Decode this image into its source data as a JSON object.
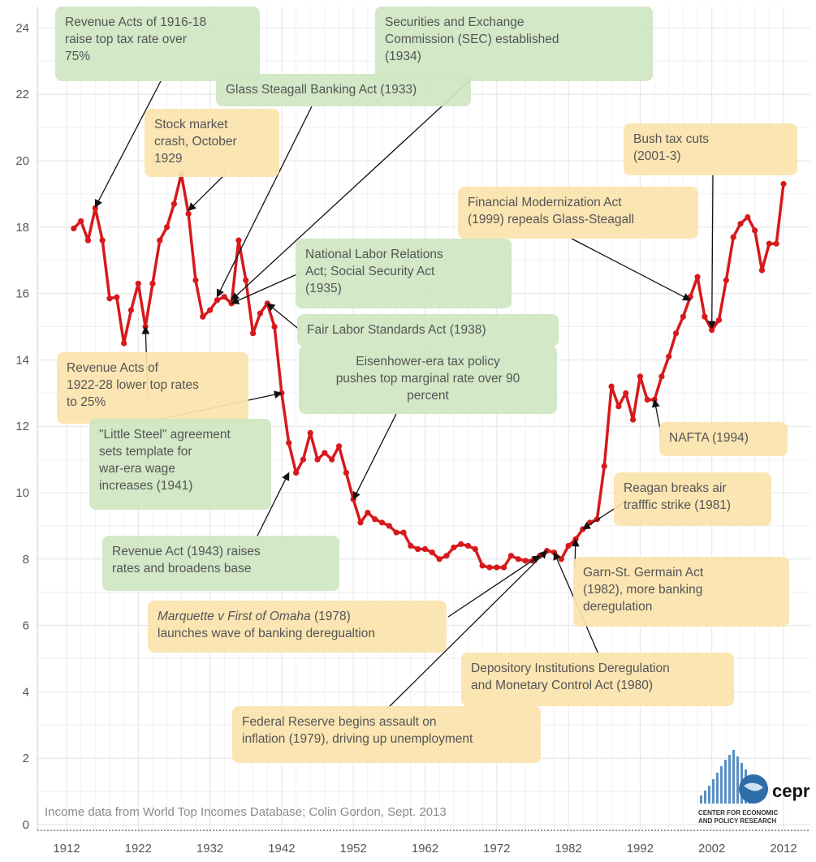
{
  "chart_data": {
    "type": "line",
    "title": "",
    "xlabel": "",
    "ylabel": "",
    "ylim": [
      0,
      25
    ],
    "xlim": [
      1910,
      2013
    ],
    "grid": true,
    "y_ticks": [
      0,
      2,
      4,
      6,
      8,
      10,
      12,
      14,
      16,
      18,
      20,
      22,
      24
    ],
    "x_ticks": [
      1912,
      1922,
      1932,
      1942,
      1952,
      1962,
      1972,
      1982,
      1992,
      2002,
      2012
    ],
    "series": [
      {
        "color": "#d7191c",
        "points": [
          [
            1913,
            17.96
          ],
          [
            1914,
            18.18
          ],
          [
            1915,
            17.6
          ],
          [
            1916,
            18.57
          ],
          [
            1917,
            17.6
          ],
          [
            1918,
            15.85
          ],
          [
            1919,
            15.89
          ],
          [
            1920,
            14.5
          ],
          [
            1921,
            15.5
          ],
          [
            1922,
            16.3
          ],
          [
            1923,
            15.0
          ],
          [
            1924,
            16.3
          ],
          [
            1925,
            17.6
          ],
          [
            1926,
            18.0
          ],
          [
            1927,
            18.7
          ],
          [
            1928,
            19.6
          ],
          [
            1929,
            18.4
          ],
          [
            1930,
            16.4
          ],
          [
            1931,
            15.3
          ],
          [
            1932,
            15.5
          ],
          [
            1933,
            15.8
          ],
          [
            1934,
            15.9
          ],
          [
            1935,
            15.7
          ],
          [
            1936,
            17.6
          ],
          [
            1937,
            16.4
          ],
          [
            1938,
            14.8
          ],
          [
            1939,
            15.4
          ],
          [
            1940,
            15.7
          ],
          [
            1941,
            15.0
          ],
          [
            1942,
            13.0
          ],
          [
            1943,
            11.5
          ],
          [
            1944,
            10.6
          ],
          [
            1945,
            11.0
          ],
          [
            1946,
            11.8
          ],
          [
            1947,
            11.0
          ],
          [
            1948,
            11.2
          ],
          [
            1949,
            11.0
          ],
          [
            1950,
            11.4
          ],
          [
            1951,
            10.6
          ],
          [
            1952,
            9.8
          ],
          [
            1953,
            9.1
          ],
          [
            1954,
            9.4
          ],
          [
            1955,
            9.2
          ],
          [
            1956,
            9.1
          ],
          [
            1957,
            9.0
          ],
          [
            1958,
            8.8
          ],
          [
            1959,
            8.8
          ],
          [
            1960,
            8.4
          ],
          [
            1961,
            8.3
          ],
          [
            1962,
            8.3
          ],
          [
            1963,
            8.2
          ],
          [
            1964,
            8.0
          ],
          [
            1965,
            8.1
          ],
          [
            1966,
            8.35
          ],
          [
            1967,
            8.45
          ],
          [
            1968,
            8.4
          ],
          [
            1969,
            8.3
          ],
          [
            1970,
            7.8
          ],
          [
            1971,
            7.75
          ],
          [
            1972,
            7.75
          ],
          [
            1973,
            7.75
          ],
          [
            1974,
            8.1
          ],
          [
            1975,
            8.0
          ],
          [
            1976,
            7.95
          ],
          [
            1977,
            7.95
          ],
          [
            1978,
            8.1
          ],
          [
            1979,
            8.25
          ],
          [
            1980,
            8.2
          ],
          [
            1981,
            8.0
          ],
          [
            1982,
            8.4
          ],
          [
            1983,
            8.6
          ],
          [
            1984,
            8.9
          ],
          [
            1985,
            9.1
          ],
          [
            1986,
            9.2
          ],
          [
            1987,
            10.8
          ],
          [
            1988,
            13.2
          ],
          [
            1989,
            12.6
          ],
          [
            1990,
            13.0
          ],
          [
            1991,
            12.2
          ],
          [
            1992,
            13.5
          ],
          [
            1993,
            12.8
          ],
          [
            1994,
            12.8
          ],
          [
            1995,
            13.5
          ],
          [
            1996,
            14.1
          ],
          [
            1997,
            14.8
          ],
          [
            1998,
            15.3
          ],
          [
            1999,
            15.9
          ],
          [
            2000,
            16.5
          ],
          [
            2001,
            15.3
          ],
          [
            2002,
            14.9
          ],
          [
            2003,
            15.2
          ],
          [
            2004,
            16.4
          ],
          [
            2005,
            17.7
          ],
          [
            2006,
            18.1
          ],
          [
            2007,
            18.3
          ],
          [
            2008,
            17.9
          ],
          [
            2009,
            16.7
          ],
          [
            2010,
            17.5
          ],
          [
            2011,
            17.5
          ],
          [
            2012,
            19.3
          ]
        ]
      }
    ],
    "annotations": [
      {
        "text": [
          "Revenue Acts of 1916-18",
          "raise top tax rate over",
          "75%"
        ],
        "color": "green",
        "target": [
          1916,
          18.6
        ]
      },
      {
        "text": [
          "Securities and Exchange",
          "Commission (SEC) established",
          "(1934)"
        ],
        "color": "green",
        "target": [
          1935,
          15.8
        ]
      },
      {
        "text": [
          "Glass Steagall Banking Act (1933)"
        ],
        "color": "green",
        "target": [
          1933,
          15.9
        ]
      },
      {
        "text": [
          "Stock market",
          "crash, October",
          "1929"
        ],
        "color": "yellow",
        "target": [
          1929,
          18.5
        ]
      },
      {
        "text": [
          "Bush tax cuts",
          "(2001-3)"
        ],
        "color": "yellow",
        "target": [
          2002,
          14.95
        ]
      },
      {
        "text": [
          "Financial Modernization Act",
          "(1999) repeals Glass-Steagall"
        ],
        "color": "yellow",
        "target": [
          1999,
          15.8
        ]
      },
      {
        "text": [
          "National Labor Relations",
          "Act; Social Security Act",
          "(1935)"
        ],
        "color": "green",
        "target": [
          1935,
          15.7
        ]
      },
      {
        "text": [
          "Fair Labor Standards Act (1938)"
        ],
        "color": "green",
        "target": [
          1940,
          15.7
        ]
      },
      {
        "text": [
          "Eisenhower-era tax policy",
          "pushes top marginal rate over 90",
          "percent"
        ],
        "color": "green",
        "target": [
          1952,
          9.8
        ]
      },
      {
        "text": [
          "Revenue Acts of",
          "1922-28 lower top rates",
          "to 25%"
        ],
        "color": "yellow",
        "target": [
          1923,
          15.0
        ]
      },
      {
        "text": [
          "\"Little Steel\" agreement",
          "sets template for",
          "war-era wage",
          "increases (1941)"
        ],
        "color": "green",
        "target": [
          1942,
          13.0
        ]
      },
      {
        "text": [
          "NAFTA (1994)"
        ],
        "color": "yellow",
        "target": [
          1994,
          12.8
        ]
      },
      {
        "text": [
          "Reagan breaks air",
          "trafffic strike (1981)"
        ],
        "color": "yellow",
        "target": [
          1984,
          8.9
        ]
      },
      {
        "text": [
          "Revenue Act (1943) raises",
          "rates and broadens base"
        ],
        "color": "green",
        "target": [
          1943,
          10.6
        ]
      },
      {
        "text": [
          "Garn-St. Germain Act",
          "(1982), more banking",
          "deregulation"
        ],
        "color": "yellow",
        "target": [
          1983,
          8.6
        ]
      },
      {
        "text": [
          "Marquette v First of Omaha (1978)",
          "launches wave of banking deregualtion"
        ],
        "color": "yellow",
        "target": [
          1978,
          8.1
        ],
        "italic_prefix": "Marquette v First of Omaha"
      },
      {
        "text": [
          "Depository Institutions Deregulation",
          "and Monetary Control Act (1980)"
        ],
        "color": "yellow",
        "target": [
          1980,
          8.2
        ]
      },
      {
        "text": [
          "Federal Reserve begins assault on",
          "inflation (1979), driving up unemployment"
        ],
        "color": "yellow",
        "target": [
          1979,
          8.25
        ]
      }
    ],
    "source": "Income data from World Top Incomes Database; Colin Gordon, Sept. 2013",
    "logo": {
      "name": "cepr",
      "subtitle": [
        "CENTER FOR ECONOMIC",
        "AND POLICY RESEARCH"
      ]
    }
  }
}
